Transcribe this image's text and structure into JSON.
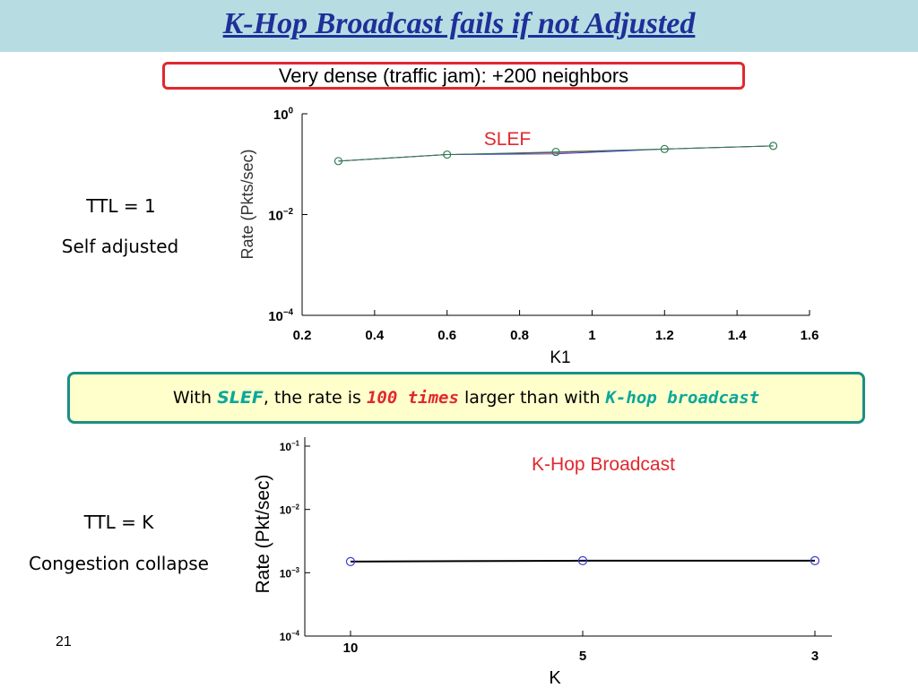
{
  "slide": {
    "title": "K-Hop Broadcast fails if not Adjusted",
    "density_note": "Very dense (traffic jam): +200 neighbors",
    "ttl1_label": "TTL = 1",
    "ttl1_note": "Self adjusted",
    "ttlk_label": "TTL = K",
    "ttlk_note": "Congestion collapse",
    "callout": {
      "t1": "With ",
      "slef": "SLEF",
      "t2": ", the rate is ",
      "times": "100 times",
      "t3": " larger than with ",
      "khop": "K-hop broadcast"
    },
    "page_number": "21"
  },
  "colors": {
    "title_bar": "#b7dde2",
    "title_text": "#1f2f9a",
    "density_border": "#e0282e",
    "callout_fill": "#ffffcc",
    "callout_border": "#1a8f85",
    "emphasis_teal": "#0aa89a",
    "emphasis_red": "#e0282e",
    "marker_green": "#2f7d4f",
    "marker_blue": "#3a3ad8"
  },
  "chart_data": [
    {
      "type": "line",
      "annotation": "SLEF",
      "xlabel": "K1",
      "ylabel": "Rate (Pkts/sec)",
      "xlim": [
        0.2,
        1.6
      ],
      "ylim": [
        0.0001,
        1
      ],
      "yscale": "log",
      "xticks": [
        "0.2",
        "0.4",
        "0.6",
        "0.8",
        "1",
        "1.2",
        "1.4",
        "1.6"
      ],
      "ytick_labels": [
        {
          "base": "10",
          "exp": "0",
          "value": 1
        },
        {
          "base": "10",
          "exp": "−2",
          "value": 0.01
        },
        {
          "base": "10",
          "exp": "−4",
          "value": 0.0001
        }
      ],
      "x": [
        0.3,
        0.6,
        0.9,
        1.2,
        1.5
      ],
      "series": [
        {
          "values": [
            0.115,
            0.155,
            0.175,
            0.2,
            0.23
          ],
          "color": "#2f7d4f",
          "marker": "circle"
        },
        {
          "values": [
            0.115,
            0.155,
            0.16,
            0.2,
            0.23
          ],
          "color": "#3a3ad8",
          "marker": "none"
        },
        {
          "values": [
            0.115,
            0.155,
            0.17,
            0.2,
            0.23
          ],
          "color": "#c0282e",
          "marker": "none"
        }
      ],
      "grid": false
    },
    {
      "type": "line",
      "annotation": "K-Hop Broadcast",
      "xlabel": "K",
      "ylabel": "Rate (Pkt/sec)",
      "yscale": "log",
      "ylim": [
        0.0001,
        0.1
      ],
      "categories": [
        "10",
        "5",
        "3"
      ],
      "ytick_labels": [
        {
          "base": "10",
          "exp": "−1",
          "value": 0.1
        },
        {
          "base": "10",
          "exp": "−2",
          "value": 0.01
        },
        {
          "base": "10",
          "exp": "−3",
          "value": 0.001
        },
        {
          "base": "10",
          "exp": "−4",
          "value": 0.0001
        }
      ],
      "series": [
        {
          "values": [
            0.0015,
            0.00155,
            0.00155
          ],
          "color": "#000000",
          "marker": "circle",
          "marker_color": "#3a3ad8"
        }
      ],
      "grid": false
    }
  ]
}
